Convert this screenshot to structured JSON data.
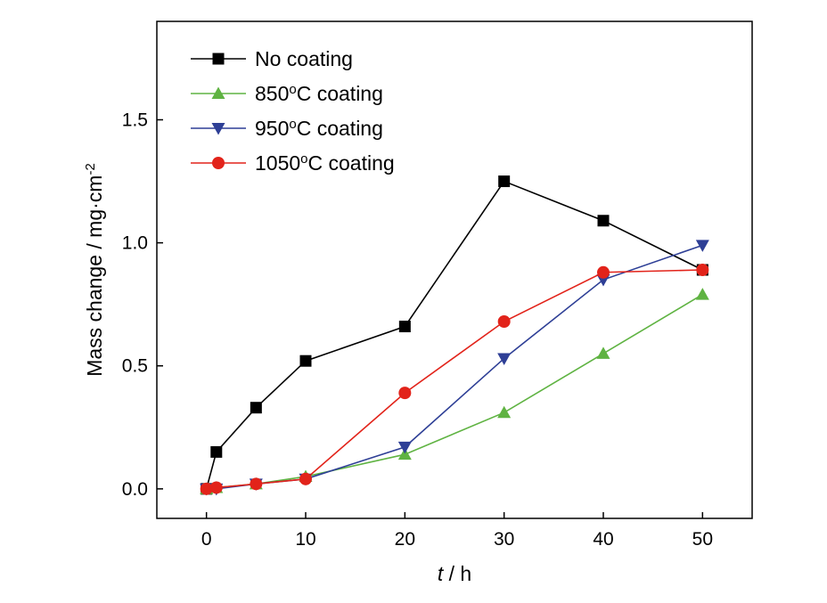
{
  "chart_data": {
    "type": "line",
    "title": "",
    "xlabel": {
      "italic": "t",
      "rest": " / h"
    },
    "ylabel": {
      "main": "Mass change / mg·cm",
      "sup": "-2"
    },
    "xlim": [
      -5,
      55
    ],
    "ylim": [
      -0.12,
      1.9
    ],
    "xticks": [
      0,
      10,
      20,
      30,
      40,
      50
    ],
    "xtick_labels": [
      "0",
      "10",
      "20",
      "30",
      "40",
      "50"
    ],
    "yticks": [
      0.0,
      0.5,
      1.0,
      1.5
    ],
    "ytick_labels": [
      "0.0",
      "0.5",
      "1.0",
      "1.5"
    ],
    "grid": false,
    "legend_position": "top-left",
    "series": [
      {
        "name": "No coating",
        "legend": {
          "main": "No coating",
          "sup": "",
          "after": ""
        },
        "color": "#000000",
        "marker": "square",
        "x": [
          0,
          1,
          5,
          10,
          20,
          30,
          40,
          50
        ],
        "y": [
          0.0,
          0.15,
          0.33,
          0.52,
          0.66,
          1.25,
          1.09,
          0.89
        ]
      },
      {
        "name": "850°C coating",
        "legend": {
          "main": "850",
          "sup": "o",
          "after": "C coating"
        },
        "color": "#5fb342",
        "marker": "triangle-up",
        "x": [
          0,
          1,
          5,
          10,
          20,
          30,
          40,
          50
        ],
        "y": [
          0.0,
          0.005,
          0.02,
          0.05,
          0.14,
          0.31,
          0.55,
          0.79
        ]
      },
      {
        "name": "950°C coating",
        "legend": {
          "main": "950",
          "sup": "o",
          "after": "C coating"
        },
        "color": "#2e3f96",
        "marker": "triangle-down",
        "x": [
          0,
          1,
          5,
          10,
          20,
          30,
          40,
          50
        ],
        "y": [
          0.0,
          0.0,
          0.02,
          0.04,
          0.17,
          0.53,
          0.85,
          0.99
        ]
      },
      {
        "name": "1050°C coating",
        "legend": {
          "main": "1050",
          "sup": "o",
          "after": "C coating"
        },
        "color": "#e2231a",
        "marker": "circle",
        "x": [
          0,
          1,
          5,
          10,
          20,
          30,
          40,
          50
        ],
        "y": [
          0.0,
          0.005,
          0.02,
          0.04,
          0.39,
          0.68,
          0.88,
          0.89
        ]
      }
    ]
  }
}
